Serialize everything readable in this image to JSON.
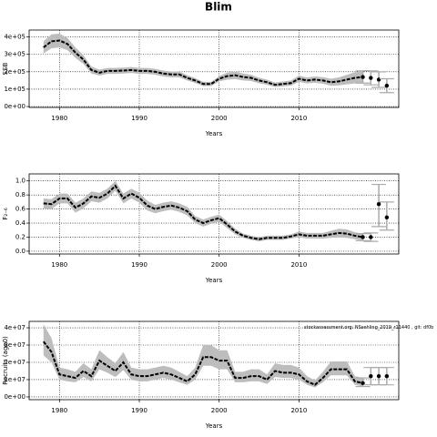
{
  "chart_data": [
    {
      "type": "line",
      "title": "Blim",
      "ylabel": "SSB",
      "xlabel": "Years",
      "x": [
        1978,
        1979,
        1980,
        1981,
        1982,
        1983,
        1984,
        1985,
        1986,
        1987,
        1988,
        1989,
        1990,
        1991,
        1992,
        1993,
        1994,
        1995,
        1996,
        1997,
        1998,
        1999,
        2000,
        2001,
        2002,
        2003,
        2004,
        2005,
        2006,
        2007,
        2008,
        2009,
        2010,
        2011,
        2012,
        2013,
        2014,
        2015,
        2016,
        2017,
        2018
      ],
      "values": [
        340000,
        375000,
        380000,
        360000,
        310000,
        270000,
        210000,
        195000,
        205000,
        205000,
        207000,
        210000,
        205000,
        205000,
        200000,
        190000,
        185000,
        185000,
        165000,
        150000,
        130000,
        130000,
        160000,
        175000,
        180000,
        170000,
        165000,
        150000,
        140000,
        125000,
        130000,
        135000,
        160000,
        150000,
        155000,
        150000,
        140000,
        145000,
        155000,
        165000,
        170000
      ],
      "lower": [
        305000,
        335000,
        340000,
        325000,
        280000,
        245000,
        190000,
        178000,
        188000,
        188000,
        190000,
        193000,
        188000,
        188000,
        183000,
        173000,
        168000,
        168000,
        150000,
        136000,
        118000,
        118000,
        145000,
        155000,
        158000,
        150000,
        147000,
        134000,
        125000,
        112000,
        116000,
        120000,
        142000,
        133000,
        137000,
        131000,
        120000,
        122000,
        128000,
        133000,
        135000
      ],
      "upper": [
        375000,
        415000,
        420000,
        395000,
        340000,
        295000,
        230000,
        212000,
        222000,
        222000,
        224000,
        227000,
        222000,
        222000,
        217000,
        207000,
        202000,
        202000,
        180000,
        164000,
        142000,
        142000,
        175000,
        195000,
        202000,
        190000,
        183000,
        166000,
        155000,
        138000,
        144000,
        150000,
        178000,
        167000,
        173000,
        169000,
        160000,
        168000,
        182000,
        197000,
        205000
      ],
      "points_x": [
        2018,
        2019,
        2020,
        2021
      ],
      "points": [
        170000,
        165000,
        155000,
        120000
      ],
      "points_lower": [
        135000,
        125000,
        110000,
        80000
      ],
      "points_upper": [
        205000,
        205000,
        200000,
        160000
      ],
      "xlim": [
        1976.2,
        2022.5
      ],
      "xticks": [
        1980,
        1990,
        2000,
        2010
      ],
      "ylim": [
        -5000,
        440000
      ],
      "yticks": [
        {
          "value": 0,
          "label": "0e+00"
        },
        {
          "value": 100000,
          "label": "1e+05"
        },
        {
          "value": 200000,
          "label": "2e+05"
        },
        {
          "value": 300000,
          "label": "3e+05"
        },
        {
          "value": 400000,
          "label": "4e+05"
        }
      ],
      "grid": true,
      "color": "#000000",
      "band_color": "#bdbdbd"
    },
    {
      "type": "line",
      "ylabel": "F₂₋₆",
      "xlabel": "Years",
      "x": [
        1978,
        1979,
        1980,
        1981,
        1982,
        1983,
        1984,
        1985,
        1986,
        1987,
        1988,
        1989,
        1990,
        1991,
        1992,
        1993,
        1994,
        1995,
        1996,
        1997,
        1998,
        1999,
        2000,
        2001,
        2002,
        2003,
        2004,
        2005,
        2006,
        2007,
        2008,
        2009,
        2010,
        2011,
        2012,
        2013,
        2014,
        2015,
        2016,
        2017,
        2018
      ],
      "values": [
        0.68,
        0.67,
        0.75,
        0.75,
        0.62,
        0.68,
        0.78,
        0.76,
        0.82,
        0.93,
        0.75,
        0.82,
        0.76,
        0.65,
        0.6,
        0.63,
        0.65,
        0.62,
        0.57,
        0.45,
        0.4,
        0.44,
        0.47,
        0.38,
        0.28,
        0.22,
        0.19,
        0.17,
        0.19,
        0.19,
        0.19,
        0.21,
        0.24,
        0.22,
        0.22,
        0.22,
        0.24,
        0.26,
        0.25,
        0.22,
        0.2
      ],
      "lower": [
        0.61,
        0.6,
        0.68,
        0.68,
        0.55,
        0.61,
        0.71,
        0.69,
        0.75,
        0.86,
        0.68,
        0.75,
        0.69,
        0.58,
        0.54,
        0.57,
        0.59,
        0.56,
        0.51,
        0.4,
        0.35,
        0.39,
        0.42,
        0.33,
        0.24,
        0.19,
        0.16,
        0.14,
        0.16,
        0.16,
        0.16,
        0.18,
        0.2,
        0.18,
        0.18,
        0.18,
        0.19,
        0.2,
        0.19,
        0.17,
        0.15
      ],
      "upper": [
        0.75,
        0.74,
        0.82,
        0.82,
        0.69,
        0.75,
        0.85,
        0.83,
        0.89,
        1.0,
        0.82,
        0.89,
        0.83,
        0.72,
        0.66,
        0.69,
        0.71,
        0.68,
        0.63,
        0.5,
        0.45,
        0.49,
        0.52,
        0.43,
        0.32,
        0.25,
        0.22,
        0.2,
        0.22,
        0.22,
        0.22,
        0.24,
        0.28,
        0.26,
        0.26,
        0.26,
        0.29,
        0.32,
        0.31,
        0.27,
        0.25
      ],
      "points_x": [
        2018,
        2019,
        2020,
        2021
      ],
      "points": [
        0.2,
        0.2,
        0.67,
        0.48
      ],
      "points_lower": [
        0.15,
        0.14,
        0.35,
        0.3
      ],
      "points_upper": [
        0.25,
        0.26,
        0.95,
        0.7
      ],
      "xlim": [
        1976.2,
        2022.5
      ],
      "xticks": [
        1980,
        1990,
        2000,
        2010
      ],
      "ylim": [
        -0.04,
        1.1
      ],
      "yticks": [
        {
          "value": 0,
          "label": "0.0"
        },
        0.2,
        0.4,
        0.6,
        0.8,
        {
          "value": 1,
          "label": "1.0"
        }
      ],
      "grid": true,
      "color": "#000000",
      "band_color": "#bdbdbd"
    },
    {
      "type": "line",
      "ylabel": "Recruits (age0)",
      "xlabel": "Years",
      "annotation": "stockassessment.org: NSsehling_2019_r11440 , git: df0b",
      "x": [
        1978,
        1979,
        1980,
        1981,
        1982,
        1983,
        1984,
        1985,
        1986,
        1987,
        1988,
        1989,
        1990,
        1991,
        1992,
        1993,
        1994,
        1995,
        1996,
        1997,
        1998,
        1999,
        2000,
        2001,
        2002,
        2003,
        2004,
        2005,
        2006,
        2007,
        2008,
        2009,
        2010,
        2011,
        2012,
        2013,
        2014,
        2015,
        2016,
        2017,
        2018
      ],
      "values": [
        32000000,
        26000000,
        13000000,
        12000000,
        11000000,
        15000000,
        12000000,
        21000000,
        18000000,
        15000000,
        20000000,
        13000000,
        12000000,
        12000000,
        13000000,
        14000000,
        13000000,
        11000000,
        9000000,
        13000000,
        23000000,
        23000000,
        21000000,
        21000000,
        11000000,
        11000000,
        12000000,
        12000000,
        10000000,
        15000000,
        14000000,
        14000000,
        13000000,
        9000000,
        7000000,
        11000000,
        16000000,
        16000000,
        16000000,
        9000000,
        8000000
      ],
      "lower": [
        24000000,
        20000000,
        10000000,
        9000000,
        8500000,
        11500000,
        9000000,
        16000000,
        14000000,
        11500000,
        15500000,
        10000000,
        9000000,
        9000000,
        10000000,
        11000000,
        10000000,
        8500000,
        7000000,
        10000000,
        18000000,
        18000000,
        16000000,
        16000000,
        8500000,
        8500000,
        9000000,
        9000000,
        7500000,
        11500000,
        11000000,
        11000000,
        10000000,
        7000000,
        5500000,
        8500000,
        12500000,
        12500000,
        12500000,
        7000000,
        6000000
      ],
      "upper": [
        42000000,
        34000000,
        17000000,
        16000000,
        14500000,
        19500000,
        16000000,
        27000000,
        23000000,
        19500000,
        26000000,
        17000000,
        16000000,
        16000000,
        17000000,
        18000000,
        17000000,
        14500000,
        12000000,
        17000000,
        30000000,
        30000000,
        27000000,
        27000000,
        14500000,
        14500000,
        16000000,
        16000000,
        13000000,
        19500000,
        18500000,
        18500000,
        17000000,
        12000000,
        9500000,
        14500000,
        20500000,
        20500000,
        20500000,
        12000000,
        11000000
      ],
      "points_x": [
        2018,
        2019,
        2020,
        2021
      ],
      "points": [
        8000000,
        12000000,
        12000000,
        12000000
      ],
      "points_lower": [
        6000000,
        7000000,
        7000000,
        7000000
      ],
      "points_upper": [
        11000000,
        17000000,
        17000000,
        17000000
      ],
      "xlim": [
        1976.2,
        2022.5
      ],
      "xticks": [
        1980,
        1990,
        2000,
        2010
      ],
      "ylim": [
        -1600000,
        43700000
      ],
      "yticks": [
        {
          "value": 0,
          "label": "0e+00"
        },
        {
          "value": 10000000,
          "label": "1e+07"
        },
        {
          "value": 20000000,
          "label": "2e+07"
        },
        {
          "value": 30000000,
          "label": "3e+07"
        },
        {
          "value": 40000000,
          "label": "4e+07"
        }
      ],
      "grid": true,
      "color": "#000000",
      "band_color": "#bdbdbd"
    }
  ]
}
